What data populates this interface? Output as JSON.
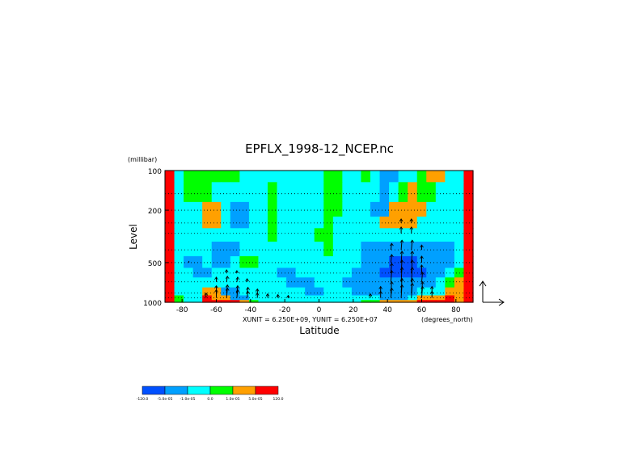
{
  "chart_data": {
    "type": "heatmap",
    "title": "EPFLX_1998-12_NCEP.nc",
    "ylabel": "Level",
    "yunit": "(millibar)",
    "xlabel": "Latitude",
    "xunit": "(degrees_north)",
    "unit_note": "XUNIT = 6.250E+09, YUNIT = 6.250E+07",
    "xlim": [
      -90,
      90
    ],
    "ylim": [
      1000,
      100
    ],
    "yscale": "log",
    "x_ticks": [
      {
        "value": -80,
        "label": "-80"
      },
      {
        "value": -60,
        "label": "-60"
      },
      {
        "value": -40,
        "label": "-40"
      },
      {
        "value": -20,
        "label": "-20"
      },
      {
        "value": 0,
        "label": "0"
      },
      {
        "value": 20,
        "label": "20"
      },
      {
        "value": 40,
        "label": "40"
      },
      {
        "value": 60,
        "label": "60"
      },
      {
        "value": 80,
        "label": "80"
      }
    ],
    "y_ticks": [
      {
        "value": 100,
        "label": "100"
      },
      {
        "value": 200,
        "label": "200"
      },
      {
        "value": 500,
        "label": "500"
      },
      {
        "value": 1000,
        "label": "1000"
      }
    ],
    "grid": "dotted horizontal lines at pressure levels",
    "levels_mb": [
      100,
      150,
      200,
      250,
      300,
      400,
      500,
      600,
      700,
      850,
      925,
      1000
    ],
    "colorbar": {
      "colors": [
        "#0050ff",
        "#00a0ff",
        "#00ffff",
        "#00ff00",
        "#ffa000",
        "#ff0000"
      ],
      "labels": [
        "-120.0",
        "-5.0e-05",
        "-1.0e-05",
        "0.0",
        "1.0e-05",
        "5.0e-05",
        "120.0"
      ]
    },
    "field_bins": [
      [
        5,
        2,
        3,
        3,
        3,
        3,
        3,
        3,
        2,
        2,
        2,
        2,
        2,
        2,
        2,
        2,
        2,
        3,
        3,
        2,
        2,
        3,
        2,
        1,
        1,
        2,
        2,
        3,
        4,
        4,
        2,
        2,
        5
      ],
      [
        5,
        2,
        3,
        3,
        3,
        2,
        2,
        2,
        2,
        2,
        2,
        3,
        2,
        2,
        2,
        2,
        2,
        3,
        3,
        2,
        2,
        2,
        2,
        1,
        2,
        3,
        4,
        3,
        3,
        2,
        2,
        2,
        5
      ],
      [
        5,
        2,
        2,
        2,
        4,
        4,
        2,
        1,
        1,
        2,
        2,
        3,
        2,
        2,
        2,
        2,
        2,
        3,
        3,
        2,
        2,
        2,
        1,
        1,
        4,
        4,
        4,
        4,
        2,
        2,
        2,
        2,
        5
      ],
      [
        5,
        2,
        2,
        2,
        4,
        4,
        2,
        1,
        1,
        2,
        2,
        3,
        2,
        2,
        2,
        2,
        2,
        3,
        2,
        2,
        2,
        2,
        2,
        4,
        4,
        4,
        4,
        2,
        2,
        2,
        2,
        2,
        5
      ],
      [
        5,
        2,
        2,
        2,
        2,
        2,
        2,
        2,
        2,
        2,
        2,
        3,
        2,
        2,
        2,
        2,
        3,
        3,
        2,
        2,
        2,
        2,
        2,
        2,
        2,
        2,
        2,
        2,
        2,
        2,
        2,
        2,
        5
      ],
      [
        5,
        2,
        2,
        2,
        2,
        1,
        1,
        1,
        2,
        2,
        2,
        2,
        2,
        2,
        2,
        2,
        2,
        3,
        2,
        2,
        2,
        1,
        1,
        1,
        1,
        1,
        1,
        1,
        1,
        1,
        1,
        2,
        5
      ],
      [
        5,
        2,
        1,
        1,
        2,
        1,
        1,
        2,
        3,
        3,
        2,
        2,
        2,
        2,
        2,
        2,
        2,
        2,
        2,
        2,
        2,
        1,
        1,
        1,
        0,
        0,
        0,
        1,
        1,
        1,
        1,
        2,
        5
      ],
      [
        5,
        2,
        2,
        1,
        1,
        2,
        2,
        2,
        2,
        2,
        2,
        2,
        1,
        1,
        2,
        2,
        2,
        2,
        2,
        2,
        1,
        1,
        1,
        0,
        0,
        0,
        0,
        0,
        1,
        1,
        2,
        3,
        5
      ],
      [
        5,
        2,
        2,
        2,
        2,
        2,
        2,
        2,
        2,
        2,
        2,
        2,
        2,
        1,
        1,
        1,
        2,
        2,
        2,
        1,
        1,
        1,
        1,
        1,
        1,
        1,
        1,
        1,
        1,
        2,
        3,
        4,
        5
      ],
      [
        5,
        2,
        2,
        2,
        4,
        4,
        1,
        1,
        2,
        2,
        2,
        2,
        2,
        2,
        2,
        1,
        1,
        2,
        2,
        2,
        1,
        1,
        1,
        1,
        1,
        1,
        1,
        2,
        2,
        2,
        4,
        4,
        5
      ],
      [
        5,
        3,
        2,
        2,
        5,
        4,
        4,
        1,
        1,
        2,
        2,
        2,
        2,
        2,
        2,
        2,
        2,
        2,
        2,
        2,
        2,
        2,
        2,
        1,
        1,
        1,
        2,
        4,
        4,
        4,
        5,
        4,
        5
      ],
      [
        5,
        3,
        2,
        2,
        5,
        5,
        5,
        5,
        4,
        3,
        2,
        2,
        2,
        2,
        2,
        2,
        2,
        2,
        2,
        2,
        2,
        3,
        3,
        4,
        4,
        4,
        4,
        5,
        5,
        5,
        5,
        4,
        5
      ]
    ],
    "arrows": [
      {
        "lat": -76,
        "p": 500,
        "u": 0,
        "v": 2
      },
      {
        "lat": -66,
        "p": 925,
        "u": 0,
        "v": 6
      },
      {
        "lat": -60,
        "p": 925,
        "u": 0,
        "v": 10
      },
      {
        "lat": -54,
        "p": 925,
        "u": 1,
        "v": 12
      },
      {
        "lat": -48,
        "p": 925,
        "u": 1,
        "v": 10
      },
      {
        "lat": -42,
        "p": 925,
        "u": 1,
        "v": 8
      },
      {
        "lat": -36,
        "p": 925,
        "u": 0,
        "v": 6
      },
      {
        "lat": -30,
        "p": 925,
        "u": 0,
        "v": 5
      },
      {
        "lat": -24,
        "p": 925,
        "u": 0,
        "v": 4
      },
      {
        "lat": -18,
        "p": 925,
        "u": 0,
        "v": 3
      },
      {
        "lat": -60,
        "p": 850,
        "u": 0,
        "v": 9
      },
      {
        "lat": -54,
        "p": 850,
        "u": 1,
        "v": 10
      },
      {
        "lat": -48,
        "p": 850,
        "u": 1,
        "v": 9
      },
      {
        "lat": -42,
        "p": 850,
        "u": 1,
        "v": 7
      },
      {
        "lat": -36,
        "p": 850,
        "u": 0,
        "v": 5
      },
      {
        "lat": -60,
        "p": 700,
        "u": 0,
        "v": 6
      },
      {
        "lat": -54,
        "p": 700,
        "u": 1,
        "v": 7
      },
      {
        "lat": -48,
        "p": 700,
        "u": 1,
        "v": 6
      },
      {
        "lat": -42,
        "p": 700,
        "u": 0,
        "v": 4
      },
      {
        "lat": -54,
        "p": 600,
        "u": 0,
        "v": 4
      },
      {
        "lat": -48,
        "p": 600,
        "u": 0,
        "v": 3
      },
      {
        "lat": 30,
        "p": 925,
        "u": 0,
        "v": 5
      },
      {
        "lat": 36,
        "p": 925,
        "u": 0,
        "v": 8
      },
      {
        "lat": 42,
        "p": 925,
        "u": 1,
        "v": 12
      },
      {
        "lat": 48,
        "p": 925,
        "u": 1,
        "v": 16
      },
      {
        "lat": 54,
        "p": 925,
        "u": 1,
        "v": 18
      },
      {
        "lat": 60,
        "p": 925,
        "u": 1,
        "v": 14
      },
      {
        "lat": 66,
        "p": 925,
        "u": 0,
        "v": 8
      },
      {
        "lat": 36,
        "p": 850,
        "u": 0,
        "v": 8
      },
      {
        "lat": 42,
        "p": 850,
        "u": 1,
        "v": 14
      },
      {
        "lat": 48,
        "p": 850,
        "u": 1,
        "v": 18
      },
      {
        "lat": 54,
        "p": 850,
        "u": 1,
        "v": 18
      },
      {
        "lat": 60,
        "p": 850,
        "u": 1,
        "v": 14
      },
      {
        "lat": 66,
        "p": 850,
        "u": 0,
        "v": 8
      },
      {
        "lat": 42,
        "p": 700,
        "u": 1,
        "v": 14
      },
      {
        "lat": 48,
        "p": 700,
        "u": 1,
        "v": 18
      },
      {
        "lat": 54,
        "p": 700,
        "u": 1,
        "v": 18
      },
      {
        "lat": 60,
        "p": 700,
        "u": 1,
        "v": 12
      },
      {
        "lat": 42,
        "p": 600,
        "u": 1,
        "v": 12
      },
      {
        "lat": 48,
        "p": 600,
        "u": 1,
        "v": 16
      },
      {
        "lat": 54,
        "p": 600,
        "u": 1,
        "v": 16
      },
      {
        "lat": 60,
        "p": 600,
        "u": 0,
        "v": 10
      },
      {
        "lat": 42,
        "p": 500,
        "u": 1,
        "v": 10
      },
      {
        "lat": 48,
        "p": 500,
        "u": 1,
        "v": 14
      },
      {
        "lat": 54,
        "p": 500,
        "u": 1,
        "v": 14
      },
      {
        "lat": 60,
        "p": 500,
        "u": 0,
        "v": 8
      },
      {
        "lat": 42,
        "p": 400,
        "u": 1,
        "v": 8
      },
      {
        "lat": 48,
        "p": 400,
        "u": 1,
        "v": 12
      },
      {
        "lat": 54,
        "p": 400,
        "u": 1,
        "v": 12
      },
      {
        "lat": 60,
        "p": 400,
        "u": 0,
        "v": 6
      },
      {
        "lat": 48,
        "p": 300,
        "u": 0,
        "v": 8
      },
      {
        "lat": 54,
        "p": 300,
        "u": 0,
        "v": 8
      },
      {
        "lat": 48,
        "p": 250,
        "u": 0,
        "v": 5
      },
      {
        "lat": 54,
        "p": 250,
        "u": 0,
        "v": 5
      }
    ]
  }
}
